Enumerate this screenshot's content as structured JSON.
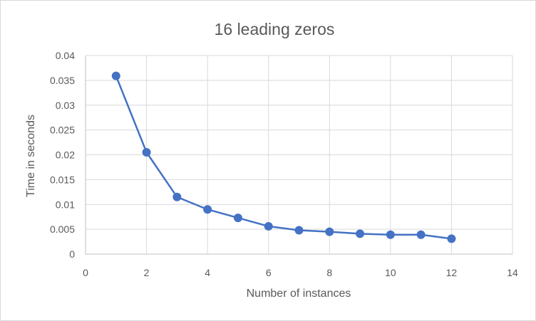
{
  "chart_data": {
    "type": "scatter",
    "title": "16 leading zeros",
    "xlabel": "Number of instances",
    "ylabel": "Time in seconds",
    "xlim": [
      0,
      14
    ],
    "ylim": [
      0,
      0.04
    ],
    "xticks": [
      "0",
      "2",
      "4",
      "6",
      "8",
      "10",
      "12",
      "14"
    ],
    "yticks": [
      "0",
      "0.005",
      "0.01",
      "0.015",
      "0.02",
      "0.025",
      "0.03",
      "0.035",
      "0.04"
    ],
    "grid": true,
    "legend": "none",
    "series": [
      {
        "color": "#4472c4",
        "x": [
          1,
          2,
          3,
          4,
          5,
          6,
          7,
          8,
          9,
          10,
          11,
          12
        ],
        "y": [
          0.0359,
          0.0205,
          0.0115,
          0.009,
          0.0073,
          0.0056,
          0.0048,
          0.0045,
          0.0041,
          0.0039,
          0.0039,
          0.0031
        ]
      }
    ]
  }
}
